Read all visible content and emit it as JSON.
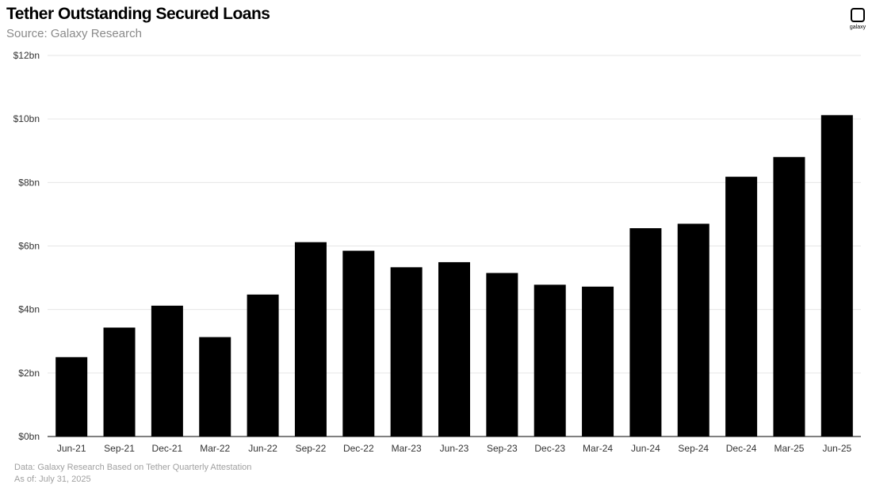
{
  "header": {
    "title": "Tether Outstanding Secured Loans",
    "subtitle": "Source: Galaxy Research",
    "logo_text": "galaxy"
  },
  "footer": {
    "data_note": "Data: Galaxy Research Based on Tether Quarterly Attestation",
    "as_of": "As of: July 31, 2025"
  },
  "colors": {
    "bar": "#000000",
    "grid": "#e6e6e6",
    "axis_text": "#333333"
  },
  "chart_data": {
    "type": "bar",
    "title": "Tether Outstanding Secured Loans",
    "subtitle": "Source: Galaxy Research",
    "xlabel": "",
    "ylabel": "",
    "categories": [
      "Jun-21",
      "Sep-21",
      "Dec-21",
      "Mar-22",
      "Jun-22",
      "Sep-22",
      "Dec-22",
      "Mar-23",
      "Jun-23",
      "Sep-23",
      "Dec-23",
      "Mar-24",
      "Jun-24",
      "Sep-24",
      "Dec-24",
      "Mar-25",
      "Jun-25"
    ],
    "values": [
      2.5,
      3.43,
      4.12,
      3.13,
      4.47,
      6.12,
      5.85,
      5.33,
      5.49,
      5.15,
      4.78,
      4.72,
      6.56,
      6.7,
      8.18,
      8.8,
      10.12
    ],
    "unit": "bn",
    "ylim": [
      0,
      12
    ],
    "yticks": [
      0,
      2,
      4,
      6,
      8,
      10,
      12
    ],
    "ytick_labels": [
      "$0bn",
      "$2bn",
      "$4bn",
      "$6bn",
      "$8bn",
      "$10bn",
      "$12bn"
    ],
    "grid": true,
    "legend": "none"
  }
}
